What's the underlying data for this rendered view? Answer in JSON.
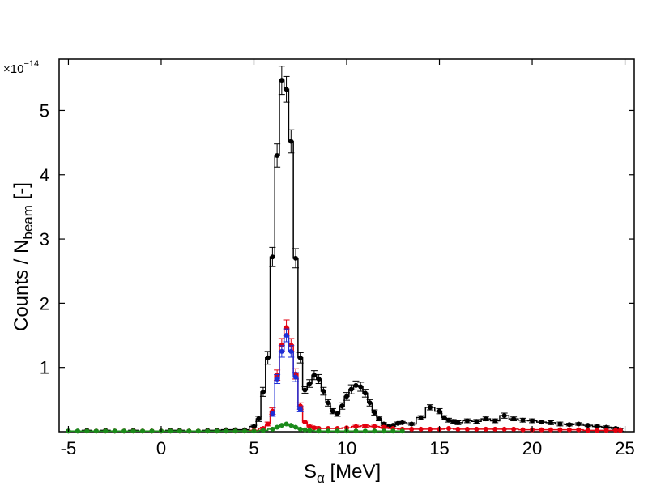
{
  "chart_data": {
    "type": "line",
    "y_multiplier": "×10",
    "y_exponent": "−14",
    "xlabel": {
      "main": "S",
      "sub": "α",
      "suffix": " [MeV]"
    },
    "ylabel": {
      "main": "Counts / N",
      "sub": "beam",
      "suffix": " [-]"
    },
    "xlim": [
      -5.5,
      25.5
    ],
    "ylim": [
      0,
      5.8
    ],
    "x_ticks": [
      -5,
      0,
      5,
      10,
      15,
      20,
      25
    ],
    "y_ticks": [
      1,
      2,
      3,
      4,
      5
    ],
    "series": [
      {
        "color": "#000000",
        "x": [
          -5,
          -4.5,
          -4,
          -3.5,
          -3,
          -2.5,
          -2,
          -1.5,
          -1,
          -0.5,
          0,
          0.5,
          1,
          1.5,
          2,
          2.5,
          3,
          3.5,
          4,
          4.5,
          5,
          5.25,
          5.5,
          5.75,
          6,
          6.25,
          6.5,
          6.75,
          7,
          7.25,
          7.5,
          7.75,
          8,
          8.25,
          8.5,
          8.75,
          9,
          9.25,
          9.5,
          9.75,
          10,
          10.25,
          10.5,
          10.75,
          11,
          11.25,
          11.5,
          11.75,
          12,
          12.25,
          12.5,
          12.75,
          13,
          13.5,
          14,
          14.5,
          15,
          15.25,
          15.5,
          15.75,
          16,
          16.5,
          17,
          17.5,
          18,
          18.5,
          19,
          19.5,
          20,
          20.5,
          21,
          21.5,
          22,
          22.5,
          23,
          23.5,
          24,
          24.5,
          24.75
        ],
        "y": [
          0.01,
          0.01,
          0.02,
          0.01,
          0.02,
          0.01,
          0.01,
          0.02,
          0.01,
          0.01,
          0.01,
          0.02,
          0.02,
          0.01,
          0.01,
          0.02,
          0.02,
          0.03,
          0.03,
          0.03,
          0.08,
          0.2,
          0.62,
          1.15,
          2.72,
          4.3,
          5.47,
          5.33,
          4.52,
          2.7,
          1.15,
          0.65,
          0.75,
          0.88,
          0.82,
          0.63,
          0.45,
          0.32,
          0.28,
          0.4,
          0.55,
          0.66,
          0.72,
          0.7,
          0.6,
          0.45,
          0.3,
          0.2,
          0.12,
          0.08,
          0.1,
          0.13,
          0.14,
          0.12,
          0.22,
          0.38,
          0.32,
          0.22,
          0.18,
          0.16,
          0.14,
          0.17,
          0.16,
          0.2,
          0.17,
          0.25,
          0.2,
          0.18,
          0.17,
          0.15,
          0.14,
          0.12,
          0.11,
          0.12,
          0.1,
          0.08,
          0.07,
          0.05,
          0.03
        ],
        "err": [
          0.01,
          0.01,
          0.01,
          0.01,
          0.01,
          0.01,
          0.01,
          0.01,
          0.01,
          0.01,
          0.01,
          0.01,
          0.01,
          0.01,
          0.01,
          0.01,
          0.01,
          0.01,
          0.01,
          0.01,
          0.02,
          0.04,
          0.07,
          0.1,
          0.15,
          0.18,
          0.22,
          0.2,
          0.18,
          0.15,
          0.08,
          0.05,
          0.06,
          0.07,
          0.07,
          0.06,
          0.05,
          0.04,
          0.04,
          0.05,
          0.06,
          0.07,
          0.07,
          0.07,
          0.06,
          0.05,
          0.04,
          0.03,
          0.02,
          0.02,
          0.02,
          0.02,
          0.02,
          0.02,
          0.03,
          0.04,
          0.04,
          0.03,
          0.03,
          0.03,
          0.03,
          0.03,
          0.03,
          0.03,
          0.03,
          0.04,
          0.03,
          0.03,
          0.03,
          0.03,
          0.03,
          0.03,
          0.02,
          0.02,
          0.02,
          0.02,
          0.02,
          0.02,
          0.02
        ]
      },
      {
        "color": "#e3000f",
        "x": [
          -4,
          -3.5,
          -3,
          -2.5,
          -2,
          -1.5,
          -1,
          -0.5,
          0,
          0.5,
          1,
          1.5,
          2,
          2.5,
          3,
          3.5,
          4,
          4.5,
          5,
          5.5,
          5.75,
          6,
          6.25,
          6.5,
          6.75,
          7,
          7.25,
          7.5,
          7.75,
          8,
          8.25,
          8.5,
          9,
          9.5,
          10,
          10.5,
          11,
          11.5,
          12,
          12.5,
          13,
          13.5,
          14,
          14.5,
          15,
          15.5,
          16,
          16.5,
          17,
          17.5,
          18,
          18.5,
          19,
          19.5,
          20,
          20.5,
          21,
          21.5,
          22,
          22.5,
          23,
          23.5,
          24,
          24.5,
          24.75
        ],
        "y": [
          0.01,
          0.01,
          0.01,
          0.01,
          0.01,
          0.01,
          0.01,
          0.01,
          0.01,
          0.01,
          0.01,
          0.01,
          0.01,
          0.01,
          0.01,
          0.01,
          0.01,
          0.01,
          0.02,
          0.05,
          0.12,
          0.32,
          0.88,
          1.35,
          1.62,
          1.35,
          0.9,
          0.4,
          0.15,
          0.08,
          0.06,
          0.05,
          0.05,
          0.05,
          0.06,
          0.08,
          0.09,
          0.08,
          0.07,
          0.05,
          0.04,
          0.04,
          0.04,
          0.04,
          0.04,
          0.05,
          0.04,
          0.04,
          0.04,
          0.04,
          0.04,
          0.04,
          0.04,
          0.03,
          0.03,
          0.03,
          0.03,
          0.03,
          0.03,
          0.03,
          0.02,
          0.02,
          0.02,
          0.02,
          0.02
        ],
        "err": [
          0.01,
          0.01,
          0.01,
          0.01,
          0.01,
          0.01,
          0.01,
          0.01,
          0.01,
          0.01,
          0.01,
          0.01,
          0.01,
          0.01,
          0.01,
          0.01,
          0.01,
          0.01,
          0.01,
          0.02,
          0.03,
          0.05,
          0.08,
          0.1,
          0.12,
          0.1,
          0.08,
          0.05,
          0.03,
          0.02,
          0.02,
          0.01,
          0.01,
          0.01,
          0.01,
          0.02,
          0.02,
          0.02,
          0.02,
          0.01,
          0.01,
          0.01,
          0.01,
          0.01,
          0.01,
          0.01,
          0.01,
          0.01,
          0.01,
          0.01,
          0.01,
          0.01,
          0.01,
          0.01,
          0.01,
          0.01,
          0.01,
          0.01,
          0.01,
          0.01,
          0.01,
          0.01,
          0.01,
          0.01,
          0.01
        ]
      },
      {
        "color": "#1f2fd6",
        "x": [
          6,
          6.25,
          6.5,
          6.75,
          7,
          7.25,
          7.5
        ],
        "y": [
          0.28,
          0.82,
          1.25,
          1.5,
          1.25,
          0.85,
          0.35
        ],
        "err": [
          0.04,
          0.07,
          0.09,
          0.1,
          0.09,
          0.07,
          0.04
        ]
      },
      {
        "color": "#1a8a1a",
        "x": [
          -5,
          -4.5,
          -4,
          -3.5,
          -3,
          -2.5,
          -2,
          -1.5,
          -1,
          -0.5,
          0,
          0.5,
          1,
          1.5,
          2,
          2.5,
          3,
          3.5,
          4,
          4.5,
          5,
          5.5,
          6,
          6.25,
          6.5,
          6.75,
          7,
          7.25,
          7.5,
          7.75,
          8,
          8.5,
          9,
          9.5,
          10,
          10.5,
          11,
          11.5,
          12,
          12.5,
          13
        ],
        "y": [
          0.01,
          0.01,
          0.01,
          0.01,
          0.01,
          0.01,
          0.01,
          0.01,
          0.01,
          0.01,
          0.01,
          0.01,
          0.01,
          0.01,
          0.01,
          0.01,
          0.01,
          0.01,
          0.01,
          0.01,
          0.01,
          0.02,
          0.04,
          0.07,
          0.1,
          0.12,
          0.1,
          0.07,
          0.04,
          0.03,
          0.02,
          0.01,
          0.01,
          0.01,
          0.01,
          0.01,
          0.01,
          0.01,
          0.01,
          0.01,
          0.01
        ],
        "err": [
          0.005,
          0.005,
          0.005,
          0.005,
          0.005,
          0.005,
          0.005,
          0.005,
          0.005,
          0.005,
          0.005,
          0.005,
          0.005,
          0.005,
          0.005,
          0.005,
          0.005,
          0.005,
          0.005,
          0.005,
          0.005,
          0.005,
          0.01,
          0.01,
          0.01,
          0.01,
          0.01,
          0.01,
          0.01,
          0.01,
          0.005,
          0.005,
          0.005,
          0.005,
          0.005,
          0.005,
          0.005,
          0.005,
          0.005,
          0.005,
          0.005
        ]
      }
    ]
  }
}
